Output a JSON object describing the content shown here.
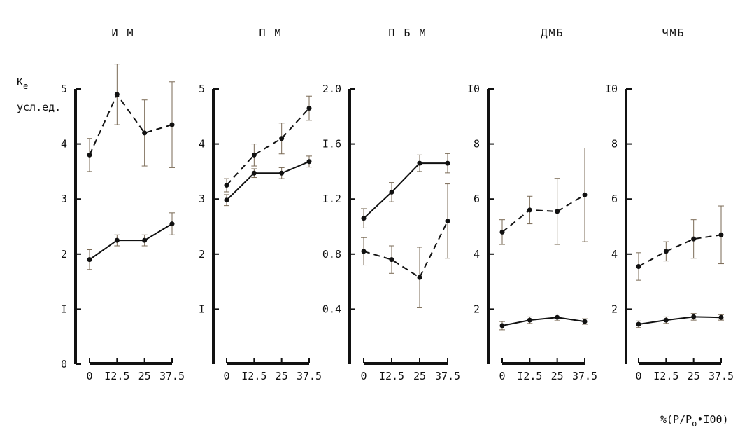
{
  "y_label_main": "K",
  "y_label_sub": "e",
  "y_unit": "усл.ед.",
  "x_axis_label": "%(P/P",
  "x_axis_label_sub": "o",
  "x_axis_label_tail": "•I00)",
  "chart_data": [
    {
      "type": "line",
      "title": "И М",
      "ylim": [
        0,
        5
      ],
      "y_ticks": [
        "0",
        "I",
        "2",
        "3",
        "4",
        "5"
      ],
      "y_tick_values": [
        0,
        1,
        2,
        3,
        4,
        5
      ],
      "x": [
        0,
        12.5,
        25,
        37.5
      ],
      "x_ticks": [
        "0",
        "I2.5",
        "25",
        "37.5"
      ],
      "series": [
        {
          "style": "dashed",
          "values": [
            3.8,
            4.9,
            4.2,
            4.35
          ],
          "errors": [
            0.3,
            0.55,
            0.6,
            0.78
          ]
        },
        {
          "style": "solid",
          "values": [
            1.9,
            2.25,
            2.25,
            2.55
          ],
          "errors": [
            0.18,
            0.1,
            0.1,
            0.2
          ]
        }
      ]
    },
    {
      "type": "line",
      "title": "П М",
      "ylim": [
        0,
        5
      ],
      "y_ticks": [
        "I",
        "2",
        "3",
        "4",
        "5"
      ],
      "y_tick_values": [
        1,
        2,
        3,
        4,
        5
      ],
      "x": [
        0,
        12.5,
        25,
        37.5
      ],
      "x_ticks": [
        "0",
        "I2.5",
        "25",
        "37.5"
      ],
      "series": [
        {
          "style": "dashed",
          "values": [
            3.25,
            3.8,
            4.1,
            4.65
          ],
          "errors": [
            0.12,
            0.2,
            0.28,
            0.22
          ]
        },
        {
          "style": "solid",
          "values": [
            2.98,
            3.47,
            3.47,
            3.68
          ],
          "errors": [
            0.1,
            0.08,
            0.1,
            0.1
          ]
        }
      ]
    },
    {
      "type": "line",
      "title": "П Б М",
      "ylim": [
        0,
        2.0
      ],
      "y_ticks": [
        "0.4",
        "0.8",
        "I.2",
        "I.6",
        "2.0"
      ],
      "y_tick_values": [
        0.4,
        0.8,
        1.2,
        1.6,
        2.0
      ],
      "x": [
        0,
        12.5,
        25,
        37.5
      ],
      "x_ticks": [
        "0",
        "I2.5",
        "25",
        "37.5"
      ],
      "series": [
        {
          "style": "solid",
          "values": [
            1.06,
            1.25,
            1.46,
            1.46
          ],
          "errors": [
            0.07,
            0.07,
            0.06,
            0.07
          ]
        },
        {
          "style": "dashed",
          "values": [
            0.82,
            0.76,
            0.63,
            1.04
          ],
          "errors": [
            0.1,
            0.1,
            0.22,
            0.27
          ]
        }
      ]
    },
    {
      "type": "line",
      "title": "ДМБ",
      "ylim": [
        0,
        10
      ],
      "y_ticks": [
        "2",
        "4",
        "6",
        "8",
        "I0"
      ],
      "y_tick_values": [
        2,
        4,
        6,
        8,
        10
      ],
      "x": [
        0,
        12.5,
        25,
        37.5
      ],
      "x_ticks": [
        "0",
        "I2.5",
        "25",
        "37.5"
      ],
      "series": [
        {
          "style": "dashed",
          "values": [
            4.8,
            5.6,
            5.55,
            6.15
          ],
          "errors": [
            0.45,
            0.5,
            1.2,
            1.7
          ]
        },
        {
          "style": "solid",
          "values": [
            1.4,
            1.6,
            1.7,
            1.55
          ],
          "errors": [
            0.15,
            0.12,
            0.12,
            0.1
          ]
        }
      ]
    },
    {
      "type": "line",
      "title": "ЧМБ",
      "ylim": [
        0,
        10
      ],
      "y_ticks": [
        "2",
        "4",
        "6",
        "8",
        "I0"
      ],
      "y_tick_values": [
        2,
        4,
        6,
        8,
        10
      ],
      "x": [
        0,
        12.5,
        25,
        37.5
      ],
      "x_ticks": [
        "0",
        "I2.5",
        "25",
        "37.5"
      ],
      "series": [
        {
          "style": "dashed",
          "values": [
            3.55,
            4.1,
            4.55,
            4.7
          ],
          "errors": [
            0.5,
            0.35,
            0.7,
            1.05
          ]
        },
        {
          "style": "solid",
          "values": [
            1.45,
            1.6,
            1.72,
            1.7
          ],
          "errors": [
            0.12,
            0.12,
            0.12,
            0.1
          ]
        }
      ]
    }
  ]
}
